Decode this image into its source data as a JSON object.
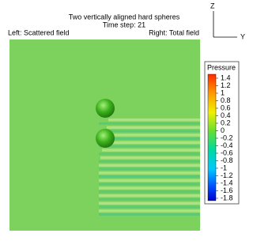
{
  "header": {
    "title": "Two vertically aligned hard spheres",
    "subtitle": "Time step: 21",
    "left_label": "Left: Scattered field",
    "right_label": "Right: Total field"
  },
  "axes": {
    "z": "Z",
    "y": "Y"
  },
  "legend": {
    "title": "Pressure",
    "labels": [
      "1.4",
      "1.2",
      "1",
      "0.8",
      "0.6",
      "0.4",
      "0.2",
      "0",
      "-0.2",
      "-0.4",
      "-0.6",
      "-0.8",
      "-1",
      "-1.2",
      "-1.4",
      "-1.6",
      "-1.8"
    ]
  }
}
